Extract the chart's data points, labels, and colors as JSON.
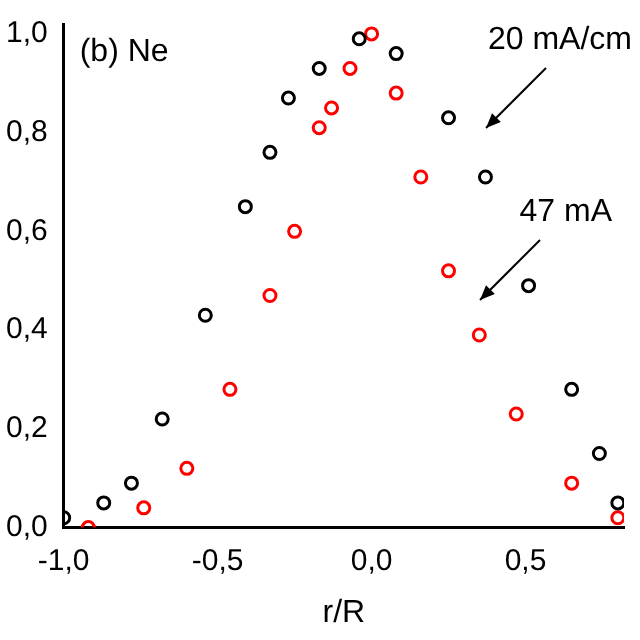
{
  "chart_data": {
    "type": "scatter",
    "xlabel": "r/R",
    "marker": "circle",
    "grid": false,
    "legend": false,
    "xlim": [
      -1,
      0.82
    ],
    "ylim": [
      0,
      1.02
    ],
    "xticks": [
      {
        "value": -1,
        "label": "-1,0"
      },
      {
        "value": -0.5,
        "label": "-0,5"
      },
      {
        "value": 0,
        "label": "0,0"
      },
      {
        "value": 0.5,
        "label": "0,5"
      }
    ],
    "yticks": [
      {
        "value": 0,
        "label": "0,0"
      },
      {
        "value": 0.2,
        "label": "0,2"
      },
      {
        "value": 0.4,
        "label": "0,4"
      },
      {
        "value": 0.6,
        "label": "0,6"
      },
      {
        "value": 0.8,
        "label": "0,8"
      },
      {
        "value": 1,
        "label": "1,0"
      }
    ],
    "series": [
      {
        "color": "#000000",
        "x": [
          -1.0,
          -0.87,
          -0.78,
          -0.68,
          -0.54,
          -0.41,
          -0.33,
          -0.27,
          -0.17,
          -0.04,
          0.08,
          0.25,
          0.37,
          0.51,
          0.65,
          0.74,
          0.8
        ],
        "values": [
          0.02,
          0.05,
          0.09,
          0.22,
          0.43,
          0.65,
          0.76,
          0.87,
          0.93,
          0.99,
          0.96,
          0.83,
          0.71,
          0.49,
          0.28,
          0.15,
          0.05
        ]
      },
      {
        "color": "#ff0000",
        "x": [
          -0.92,
          -0.74,
          -0.6,
          -0.46,
          -0.33,
          -0.25,
          -0.17,
          -0.13,
          -0.07,
          0.0,
          0.08,
          0.16,
          0.25,
          0.35,
          0.47,
          0.65,
          0.8
        ],
        "values": [
          0.0,
          0.04,
          0.12,
          0.28,
          0.47,
          0.6,
          0.81,
          0.85,
          0.93,
          1.0,
          0.88,
          0.71,
          0.52,
          0.39,
          0.23,
          0.09,
          0.02
        ]
      }
    ],
    "annotations": [
      "(b) Ne",
      "20 mA/cm",
      "47 mA"
    ]
  }
}
